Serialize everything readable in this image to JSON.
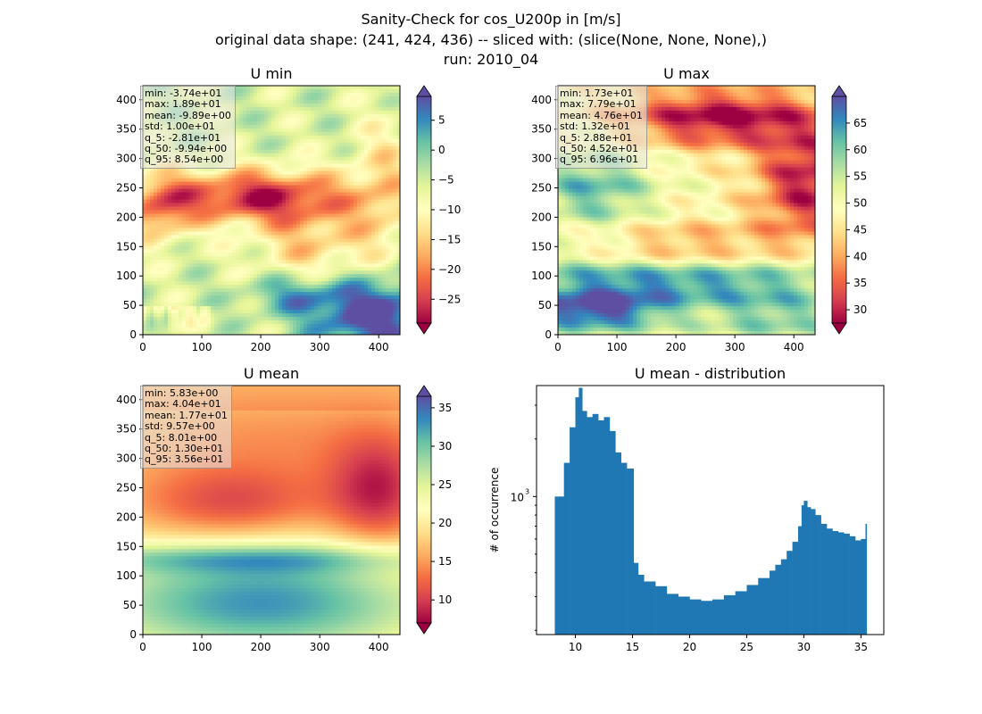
{
  "figure": {
    "title_lines": [
      "Sanity-Check for cos_U200p in [m/s]",
      "original data shape: (241, 424, 436) -- sliced with: (slice(None, None, None),)",
      "run: 2010_04"
    ]
  },
  "colormap": "Spectral",
  "colormap_stops": [
    "#9e0142",
    "#d53e4f",
    "#f46d43",
    "#fdae61",
    "#fee08b",
    "#ffffbf",
    "#e6f598",
    "#abdda4",
    "#66c2a5",
    "#3288bd",
    "#5e4fa2"
  ],
  "chart_data": [
    {
      "type": "heatmap",
      "title": "U min",
      "xlim": [
        0,
        436
      ],
      "ylim": [
        0,
        424
      ],
      "xticks": [
        0,
        100,
        200,
        300,
        400
      ],
      "yticks": [
        0,
        50,
        100,
        150,
        200,
        250,
        300,
        350,
        400
      ],
      "colorbar": {
        "min": -29,
        "max": 9,
        "ticks": [
          5,
          0,
          -5,
          -10,
          -15,
          -20,
          -25
        ],
        "tick_labels": [
          "5",
          "0",
          "−5",
          "−10",
          "−15",
          "−20",
          "−25"
        ],
        "extend": "both"
      },
      "stats": [
        "min: -3.74e+01",
        "max: 1.89e+01",
        "mean: -9.89e+00",
        "std: 1.00e+01",
        "q_5: -2.81e+01",
        "q_50: -9.94e+00",
        "q_95: 8.54e+00"
      ]
    },
    {
      "type": "heatmap",
      "title": "U max",
      "xlim": [
        0,
        436
      ],
      "ylim": [
        0,
        424
      ],
      "xticks": [
        0,
        100,
        200,
        300,
        400
      ],
      "yticks": [
        0,
        50,
        100,
        150,
        200,
        250,
        300,
        350,
        400
      ],
      "colorbar": {
        "min": 27.5,
        "max": 70,
        "ticks": [
          65,
          60,
          55,
          50,
          45,
          40,
          35,
          30
        ],
        "tick_labels": [
          "65",
          "60",
          "55",
          "50",
          "45",
          "40",
          "35",
          "30"
        ],
        "extend": "both"
      },
      "stats": [
        "min: 1.73e+01",
        "max: 7.79e+01",
        "mean: 4.76e+01",
        "std: 1.32e+01",
        "q_5: 2.88e+01",
        "q_50: 4.52e+01",
        "q_95: 6.96e+01"
      ]
    },
    {
      "type": "heatmap",
      "title": "U mean",
      "xlim": [
        0,
        436
      ],
      "ylim": [
        0,
        424
      ],
      "xticks": [
        0,
        100,
        200,
        300,
        400
      ],
      "yticks": [
        0,
        50,
        100,
        150,
        200,
        250,
        300,
        350,
        400
      ],
      "colorbar": {
        "min": 7,
        "max": 36.5,
        "ticks": [
          35,
          30,
          25,
          20,
          15,
          10
        ],
        "tick_labels": [
          "35",
          "30",
          "25",
          "20",
          "15",
          "10"
        ],
        "extend": "both"
      },
      "stats": [
        "min: 5.83e+00",
        "max: 4.04e+01",
        "mean: 1.77e+01",
        "std: 9.57e+00",
        "q_5: 8.01e+00",
        "q_50: 1.30e+01",
        "q_95: 3.56e+01"
      ]
    },
    {
      "type": "bar",
      "title": "U mean - distribution",
      "ylabel": "# of occurrence",
      "yscale": "log",
      "xlim": [
        6.6,
        37
      ],
      "ylim": [
        190,
        3800
      ],
      "xticks": [
        10,
        15,
        20,
        25,
        30,
        35
      ],
      "yticks_major": [
        1000
      ],
      "yticks_major_labels": [
        "10",
        "3"
      ],
      "bar_color": "#1f77b4",
      "x": [
        8.2,
        9.0,
        9.5,
        10.0,
        10.3,
        10.6,
        11.0,
        11.5,
        12.0,
        12.5,
        13.0,
        13.5,
        14.0,
        14.5,
        14.9,
        15.1,
        15.5,
        16.0,
        17.0,
        18.0,
        19.0,
        20.0,
        21.0,
        22.0,
        23.0,
        24.0,
        25.0,
        26.0,
        27.0,
        27.5,
        28.0,
        28.5,
        29.0,
        29.5,
        29.8,
        30.0,
        30.3,
        30.6,
        31.0,
        31.5,
        32.0,
        32.5,
        33.0,
        33.5,
        34.0,
        34.5,
        35.0,
        35.4
      ],
      "values": [
        1000,
        1500,
        2300,
        3300,
        3700,
        2800,
        2600,
        2700,
        2500,
        2600,
        2200,
        1700,
        1500,
        1400,
        1400,
        450,
        390,
        360,
        340,
        310,
        300,
        290,
        285,
        290,
        305,
        320,
        345,
        375,
        410,
        440,
        470,
        520,
        580,
        700,
        900,
        950,
        880,
        860,
        800,
        720,
        680,
        660,
        650,
        640,
        620,
        590,
        600,
        720
      ]
    }
  ]
}
